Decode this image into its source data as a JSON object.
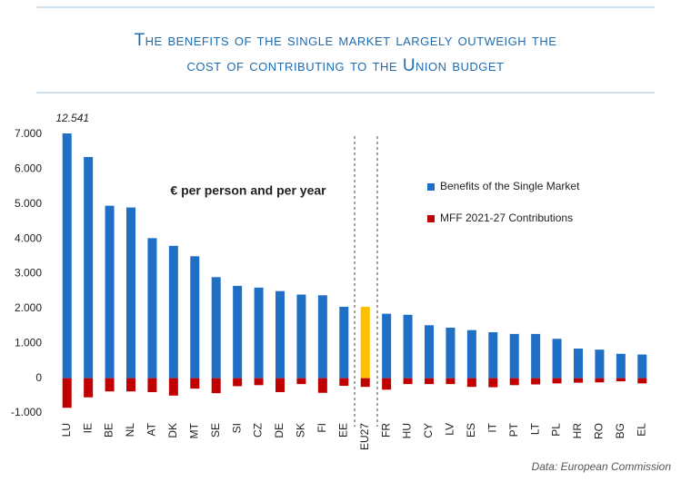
{
  "chart_data": {
    "type": "bar",
    "title": "The benefits of the single market largely outweigh the",
    "subtitle": "cost of contributing to the Union budget",
    "annotation": "€ per person and per year",
    "source": "Data: European Commission",
    "categories": [
      "LU",
      "IE",
      "BE",
      "NL",
      "AT",
      "DK",
      "MT",
      "SE",
      "SI",
      "CZ",
      "DE",
      "SK",
      "FI",
      "EE",
      "EU27",
      "FR",
      "HU",
      "CY",
      "LV",
      "ES",
      "IT",
      "PT",
      "LT",
      "PL",
      "HR",
      "RO",
      "BG",
      "EL"
    ],
    "series": [
      {
        "name": "Benefits of the Single Market",
        "color": "#1f6fc5",
        "colors": [
          "#1f6fc5",
          "#1f6fc5",
          "#1f6fc5",
          "#1f6fc5",
          "#1f6fc5",
          "#1f6fc5",
          "#1f6fc5",
          "#1f6fc5",
          "#1f6fc5",
          "#1f6fc5",
          "#1f6fc5",
          "#1f6fc5",
          "#1f6fc5",
          "#1f6fc5",
          "#ffc000",
          "#1f6fc5",
          "#1f6fc5",
          "#1f6fc5",
          "#1f6fc5",
          "#1f6fc5",
          "#1f6fc5",
          "#1f6fc5",
          "#1f6fc5",
          "#1f6fc5",
          "#1f6fc5",
          "#1f6fc5",
          "#1f6fc5",
          "#1f6fc5"
        ],
        "values": [
          12541,
          6350,
          4950,
          4900,
          4020,
          3800,
          3500,
          2900,
          2650,
          2600,
          2500,
          2400,
          2380,
          2050,
          2050,
          1850,
          1820,
          1520,
          1450,
          1380,
          1320,
          1270,
          1270,
          1130,
          850,
          820,
          700,
          680
        ],
        "value_labels": [
          "12.541",
          null,
          null,
          null,
          null,
          null,
          null,
          null,
          null,
          null,
          null,
          null,
          null,
          null,
          null,
          null,
          null,
          null,
          null,
          null,
          null,
          null,
          null,
          null,
          null,
          null,
          null,
          null
        ]
      },
      {
        "name": "MFF 2021-27 Contributions",
        "color": "#c00000",
        "values": [
          -850,
          -550,
          -380,
          -380,
          -400,
          -500,
          -300,
          -430,
          -230,
          -200,
          -400,
          -170,
          -420,
          -220,
          -250,
          -330,
          -170,
          -170,
          -170,
          -250,
          -260,
          -200,
          -180,
          -150,
          -130,
          -120,
          -90,
          -150
        ]
      }
    ],
    "ylim": [
      -1000,
      7000
    ],
    "yticks": [
      {
        "value": -1000,
        "label": "-1.000"
      },
      0,
      {
        "value": 1000,
        "label": "1.000"
      },
      {
        "value": 2000,
        "label": "2.000"
      },
      {
        "value": 3000,
        "label": "3.000"
      },
      {
        "value": 4000,
        "label": "4.000"
      },
      {
        "value": 5000,
        "label": "5.000"
      },
      {
        "value": 6000,
        "label": "6.000"
      },
      {
        "value": 7000,
        "label": "7.000"
      }
    ],
    "grid": false,
    "legend": "right"
  }
}
